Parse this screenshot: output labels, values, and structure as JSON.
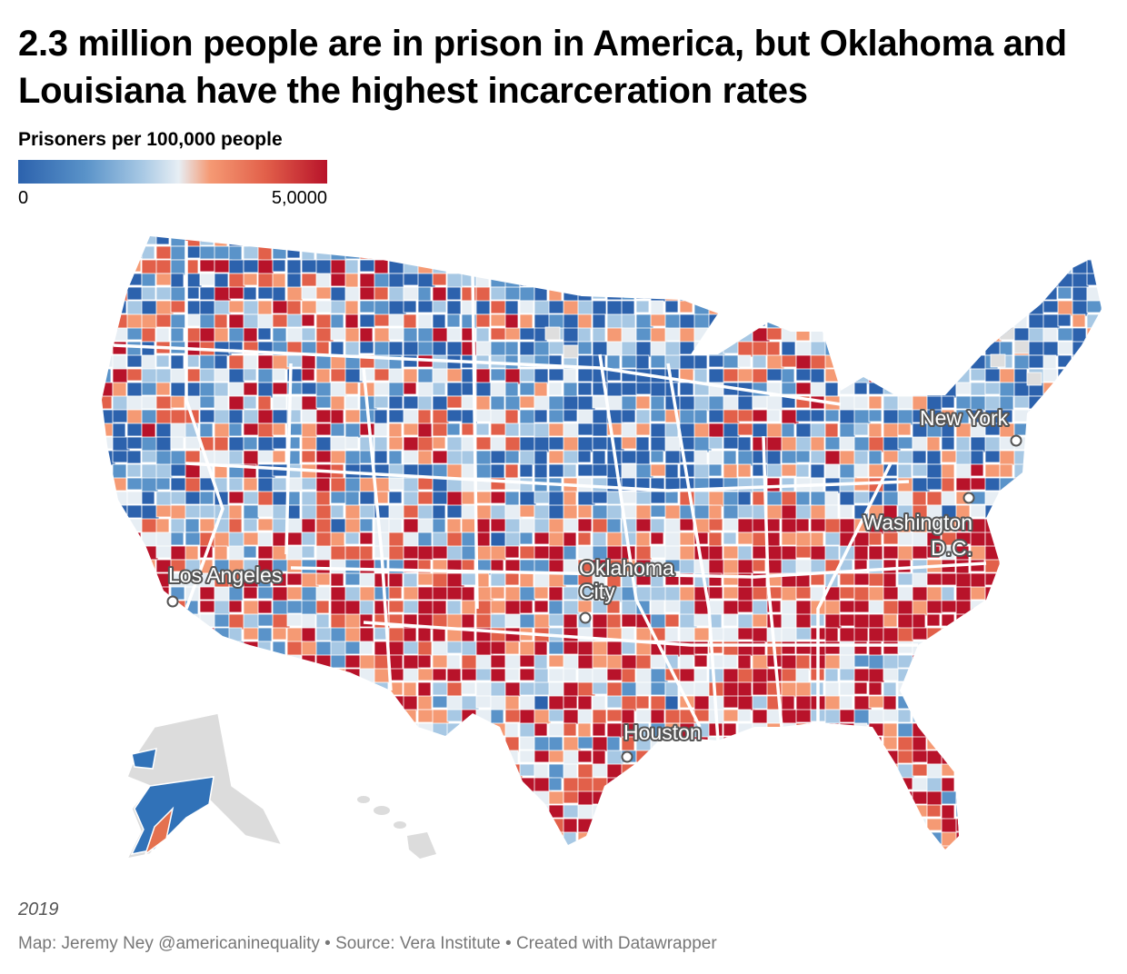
{
  "title": "2.3 million people are in prison in America, but Oklahoma and Louisiana have the highest incarceration rates",
  "legend": {
    "title": "Prisoners per 100,000 people",
    "min_label": "0",
    "max_label": "5,0000",
    "colors": [
      "#2c62ad",
      "#5a93c9",
      "#a7c8e4",
      "#e7eef4",
      "#f59a74",
      "#e2604a",
      "#b8132a"
    ]
  },
  "colors": {
    "no_data": "#dedede",
    "border": "#ffffff"
  },
  "cities": [
    {
      "name": "New York",
      "lines": [
        "New York"
      ]
    },
    {
      "name": "Washington D.C.",
      "lines": [
        "Washington",
        "D.C."
      ]
    },
    {
      "name": "Los Angeles",
      "lines": [
        "Los Angeles"
      ]
    },
    {
      "name": "Oklahoma City",
      "lines": [
        "Oklahoma",
        "City"
      ]
    },
    {
      "name": "Houston",
      "lines": [
        "Houston"
      ]
    }
  ],
  "notes": {
    "year": "2019",
    "footer": "Map: Jeremy Ney @americaninequality • Source: Vera Institute • Created with Datawrapper"
  }
}
